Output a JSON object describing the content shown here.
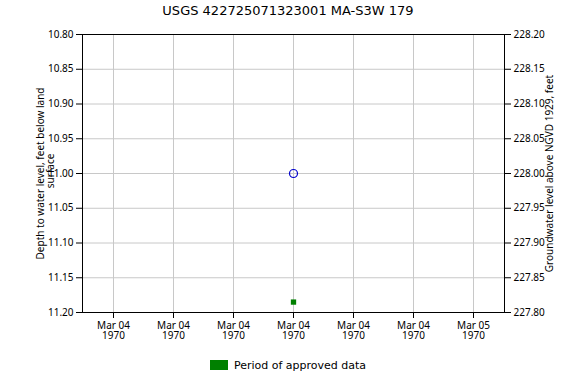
{
  "chart_data": {
    "type": "scatter",
    "title": "USGS 422725071323001 MA-S3W  179",
    "categories": [
      "Mar 04\n1970",
      "Mar 04\n1970",
      "Mar 04\n1970",
      "Mar 04\n1970",
      "Mar 04\n1970",
      "Mar 04\n1970",
      "Mar 05\n1970"
    ],
    "series": [
      {
        "color": "#0000cc",
        "marker": "circle",
        "values": [
          null,
          null,
          null,
          11.0,
          null,
          null,
          null
        ]
      },
      {
        "name": "Period of approved data",
        "color": "#008000",
        "marker": "square",
        "values": [
          null,
          null,
          null,
          11.185,
          null,
          null,
          null
        ]
      }
    ],
    "ylabel": "Depth to water level, feet below land\n  surface",
    "y2label": "Groundwater level above NGVD 1929, feet",
    "ylim": [
      11.2,
      10.8
    ],
    "yticks": [
      {
        "value": 10.8,
        "label": "10.80"
      },
      10.85,
      {
        "value": 10.9,
        "label": "10.90"
      },
      10.95,
      {
        "value": 11.0,
        "label": "11.00"
      },
      11.05,
      {
        "value": 11.1,
        "label": "11.10"
      },
      11.15,
      {
        "value": 11.2,
        "label": "11.20"
      }
    ],
    "y2lim": [
      227.8,
      228.2
    ],
    "y2ticks": [
      {
        "value": 227.8,
        "label": "227.80"
      },
      227.85,
      {
        "value": 227.9,
        "label": "227.90"
      },
      227.95,
      {
        "value": 228.0,
        "label": "228.00"
      },
      228.05,
      {
        "value": 228.1,
        "label": "228.10"
      },
      228.15,
      {
        "value": 228.2,
        "label": "228.20"
      }
    ],
    "grid": true,
    "legend": "bottom"
  }
}
